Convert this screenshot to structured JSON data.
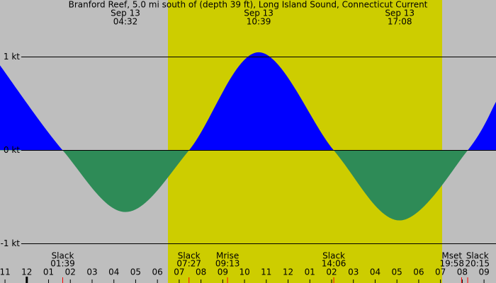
{
  "chart_data": {
    "type": "area",
    "title": "Branford Reef, 5.0 mi south of (depth 39 ft), Long Island Sound, Connecticut Current",
    "x": [
      -1.23,
      1.65,
      4.53,
      7.45,
      10.65,
      14.1,
      17.13,
      20.25,
      21.55
    ],
    "values": [
      0.91,
      0,
      -0.66,
      0,
      1.05,
      0,
      -0.75,
      0,
      0.52
    ],
    "positive_color": "#0000ff",
    "negative_color": "#2e8b57",
    "xlim": [
      -1.23,
      21.55
    ],
    "ylim": [
      -1.42,
      1.61
    ],
    "yticks": [
      {
        "value": 1,
        "label": "1 kt"
      },
      {
        "value": 0,
        "label": "0 kt"
      },
      {
        "value": -1,
        "label": "-1 kt"
      }
    ],
    "xticks": [
      {
        "value": -1,
        "label": "11"
      },
      {
        "value": 0,
        "label": "12"
      },
      {
        "value": 1,
        "label": "01"
      },
      {
        "value": 2,
        "label": "02"
      },
      {
        "value": 3,
        "label": "03"
      },
      {
        "value": 4,
        "label": "04"
      },
      {
        "value": 5,
        "label": "05"
      },
      {
        "value": 6,
        "label": "06"
      },
      {
        "value": 7,
        "label": "07"
      },
      {
        "value": 8,
        "label": "08"
      },
      {
        "value": 9,
        "label": "09"
      },
      {
        "value": 10,
        "label": "10"
      },
      {
        "value": 11,
        "label": "11"
      },
      {
        "value": 12,
        "label": "12"
      },
      {
        "value": 13,
        "label": "01"
      },
      {
        "value": 14,
        "label": "02"
      },
      {
        "value": 15,
        "label": "03"
      },
      {
        "value": 16,
        "label": "04"
      },
      {
        "value": 17,
        "label": "05"
      },
      {
        "value": 18,
        "label": "06"
      },
      {
        "value": 19,
        "label": "07"
      },
      {
        "value": 20,
        "label": "08"
      },
      {
        "value": 21,
        "label": "09"
      }
    ],
    "extremes": [
      {
        "date": "Sep 13",
        "time": "04:32",
        "x": 4.53
      },
      {
        "date": "Sep 13",
        "time": "10:39",
        "x": 10.65
      },
      {
        "date": "Sep 13",
        "time": "17:08",
        "x": 17.13
      }
    ],
    "events": [
      {
        "label": "Slack",
        "time": "01:39",
        "x": 1.65
      },
      {
        "label": "Slack",
        "time": "07:27",
        "x": 7.45
      },
      {
        "label": "Mrise",
        "time": "09:13",
        "x": 9.22
      },
      {
        "label": "Slack",
        "time": "14:06",
        "x": 14.1
      },
      {
        "label": "Mset",
        "time": "19:58",
        "x": 19.97
      },
      {
        "label": "Slack",
        "time": "20:15",
        "x": 20.25
      }
    ]
  }
}
